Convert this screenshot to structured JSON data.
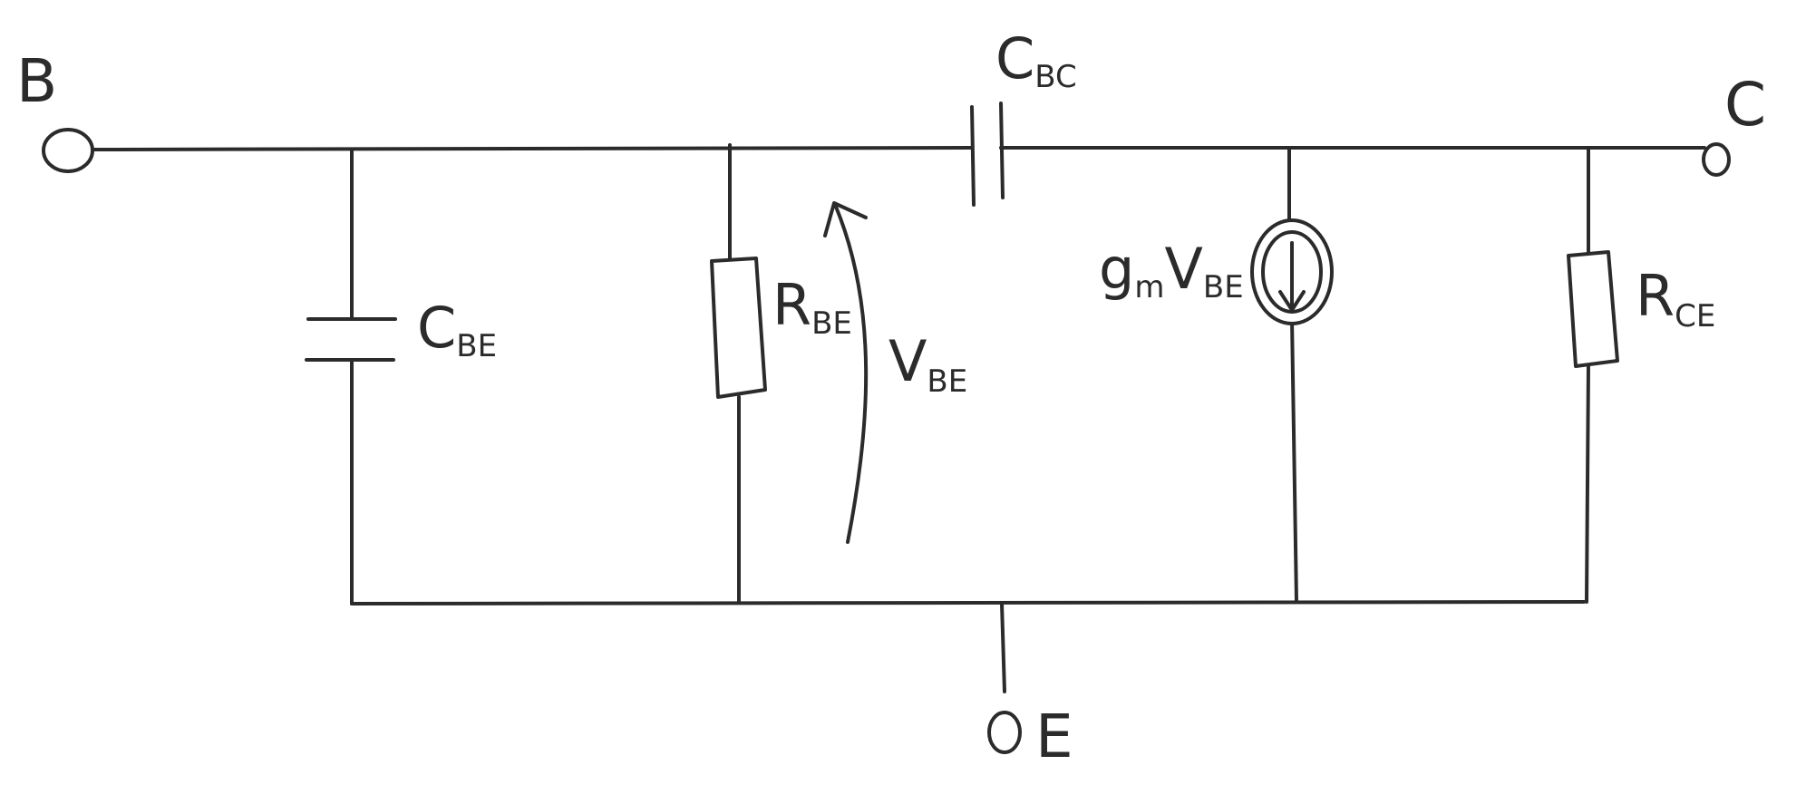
{
  "terminals": {
    "base": "B",
    "collector": "C",
    "emitter": "E"
  },
  "components": {
    "c_be": {
      "main": "C",
      "sub": "BE"
    },
    "r_be": {
      "main": "R",
      "sub": "BE"
    },
    "v_be": {
      "main": "V",
      "sub": "BE"
    },
    "c_bc": {
      "main": "C",
      "sub": "BC"
    },
    "gm_vbe": {
      "prefix": "g",
      "sub1": "m",
      "main": "V",
      "sub2": "BE"
    },
    "r_ce": {
      "main": "R",
      "sub": "CE"
    }
  }
}
